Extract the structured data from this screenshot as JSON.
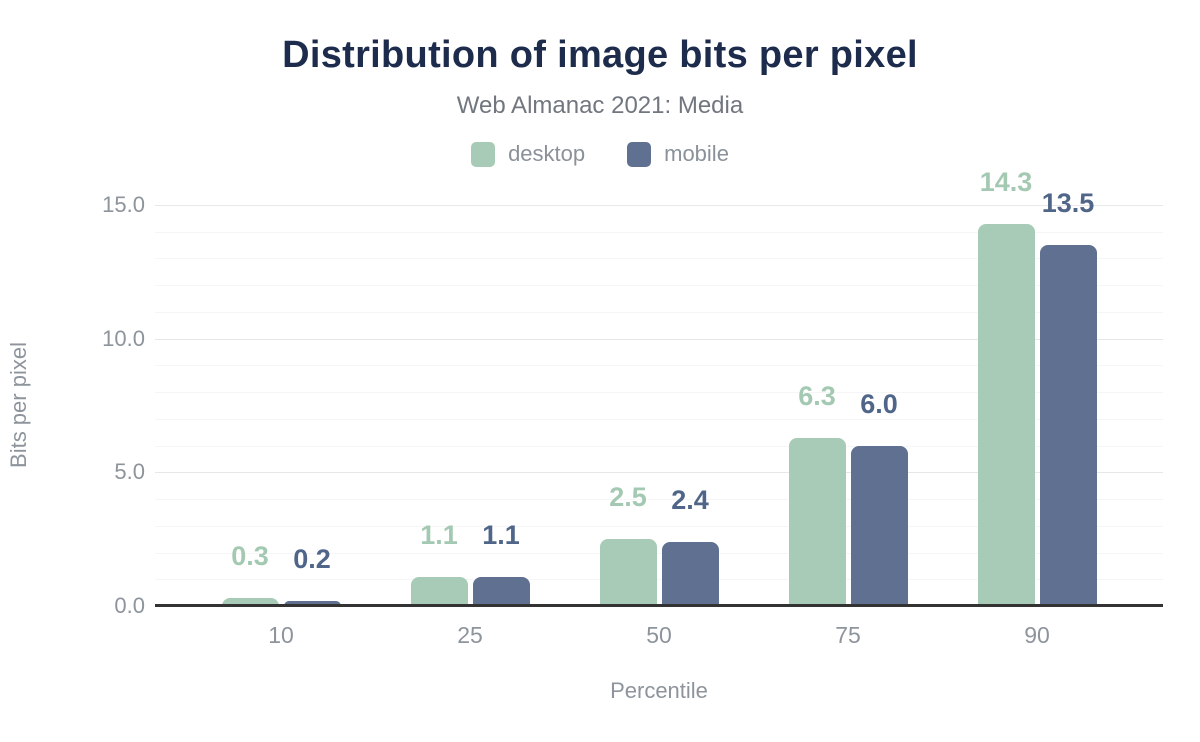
{
  "page": {
    "background": "#ffffff"
  },
  "chart_data": {
    "type": "bar",
    "title": "Distribution of image bits per pixel",
    "subtitle": "Web Almanac 2021: Media",
    "xlabel": "Percentile",
    "ylabel": "Bits per pixel",
    "categories": [
      "10",
      "25",
      "50",
      "75",
      "90"
    ],
    "series": [
      {
        "name": "desktop",
        "color": "#a7cbb6",
        "label_color": "#a4c9b2",
        "values": [
          0.3,
          1.1,
          2.5,
          6.3,
          14.3
        ]
      },
      {
        "name": "mobile",
        "color": "#5f7090",
        "label_color": "#506689",
        "values": [
          0.2,
          1.1,
          2.4,
          6.0,
          13.5
        ]
      }
    ],
    "ylim": [
      0,
      15
    ],
    "yticks": [
      {
        "value": 0,
        "label": "0.0"
      },
      {
        "value": 5,
        "label": "5.0"
      },
      {
        "value": 10,
        "label": "10.0"
      },
      {
        "value": 15,
        "label": "15.0"
      }
    ],
    "minor_step": 1,
    "grid": true,
    "legend_position": "top",
    "value_labels": true,
    "colors": {
      "title": "#1d2c4d",
      "subtitle": "#71767f",
      "axis_text": "#8e949c",
      "grid_major": "#e7e7e7",
      "grid_minor": "#f6f6f6",
      "baseline": "#333333"
    }
  }
}
